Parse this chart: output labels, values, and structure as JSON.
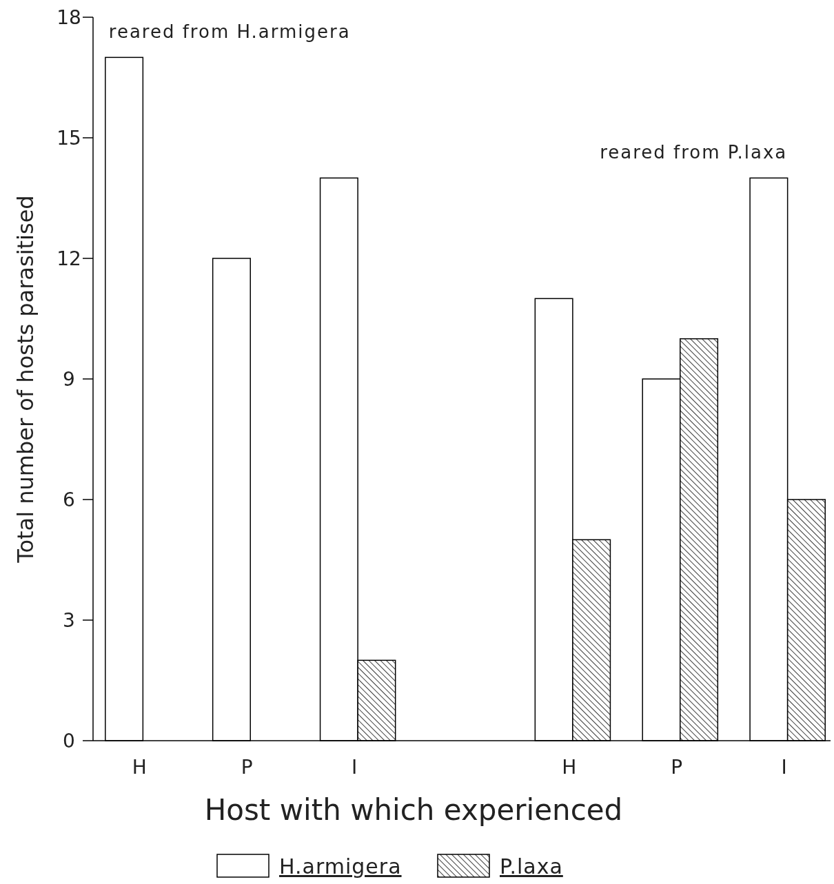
{
  "chart_data": {
    "type": "bar",
    "categories": [
      "H",
      "P",
      "I",
      null,
      "H",
      "P",
      "I"
    ],
    "series": [
      {
        "name": "H.armigera",
        "color": "#ffffff",
        "values": [
          17,
          12,
          14,
          null,
          11,
          9,
          14
        ]
      },
      {
        "name": "P.laxa",
        "color": "#000000",
        "values": [
          0,
          0,
          2,
          null,
          5,
          10,
          6
        ]
      }
    ],
    "xlabel": "Host with which experienced",
    "ylabel": "Total number of hosts parasitised",
    "ylim": [
      0,
      18
    ],
    "yticks": [
      0,
      3,
      6,
      9,
      12,
      15,
      18
    ],
    "annotations": [
      "reared from H.armigera",
      "reared from P.laxa"
    ],
    "legend": "bottom",
    "grid": false
  }
}
